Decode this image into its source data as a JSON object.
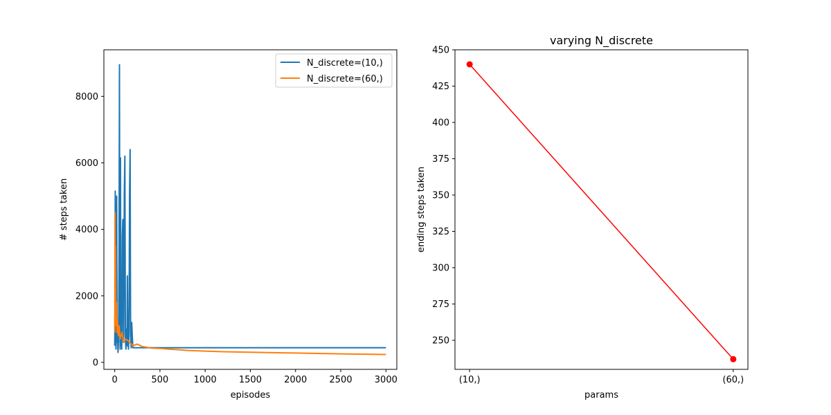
{
  "chart_data": [
    {
      "type": "line",
      "title": "",
      "xlabel": "episodes",
      "ylabel": "# steps taken",
      "xlim": [
        -120,
        3120
      ],
      "ylim": [
        -210,
        9400
      ],
      "xticks": [
        0,
        500,
        1000,
        1500,
        2000,
        2500,
        3000
      ],
      "yticks": [
        0,
        2000,
        4000,
        6000,
        8000
      ],
      "legend": "top-right",
      "series": [
        {
          "name": "N_discrete=(10,)",
          "color": "#1f77b4",
          "x": [
            0,
            3,
            6,
            10,
            14,
            18,
            22,
            26,
            30,
            36,
            42,
            48,
            52,
            56,
            60,
            64,
            68,
            72,
            78,
            84,
            90,
            96,
            100,
            106,
            112,
            118,
            124,
            130,
            136,
            140,
            146,
            152,
            158,
            164,
            170,
            176,
            182,
            188,
            200,
            250,
            300,
            500,
            1000,
            1500,
            2000,
            2500,
            3000
          ],
          "y": [
            500,
            2000,
            5150,
            800,
            400,
            1200,
            5000,
            600,
            900,
            300,
            700,
            3200,
            8950,
            1500,
            400,
            6150,
            500,
            1800,
            400,
            3800,
            4300,
            600,
            900,
            5100,
            6200,
            700,
            400,
            1000,
            500,
            2600,
            700,
            400,
            900,
            5100,
            6400,
            800,
            440,
            1200,
            440,
            440,
            440,
            440,
            440,
            440,
            440,
            440,
            440
          ]
        },
        {
          "name": "N_discrete=(60,)",
          "color": "#ff7f0e",
          "x": [
            0,
            3,
            6,
            9,
            12,
            15,
            20,
            25,
            30,
            40,
            50,
            60,
            80,
            100,
            120,
            150,
            200,
            250,
            300,
            400,
            500,
            600,
            700,
            800,
            900,
            1000,
            1200,
            1400,
            1600,
            1800,
            2000,
            2200,
            2400,
            2600,
            2800,
            3000
          ],
          "y": [
            900,
            4500,
            2300,
            3500,
            1900,
            1100,
            1800,
            900,
            1300,
            800,
            1100,
            700,
            900,
            600,
            700,
            650,
            500,
            550,
            480,
            430,
            420,
            400,
            380,
            360,
            350,
            340,
            320,
            310,
            300,
            290,
            280,
            270,
            260,
            250,
            245,
            237
          ]
        }
      ]
    },
    {
      "type": "line",
      "title": "varying N_discrete",
      "xlabel": "params",
      "ylabel": "ending steps taken",
      "categories": [
        "(10,)",
        "(60,)"
      ],
      "ylim": [
        230,
        450
      ],
      "yticks": [
        250,
        275,
        300,
        325,
        350,
        375,
        400,
        425,
        450
      ],
      "series": [
        {
          "color": "#ff0000",
          "values": [
            440,
            237
          ]
        }
      ]
    }
  ]
}
